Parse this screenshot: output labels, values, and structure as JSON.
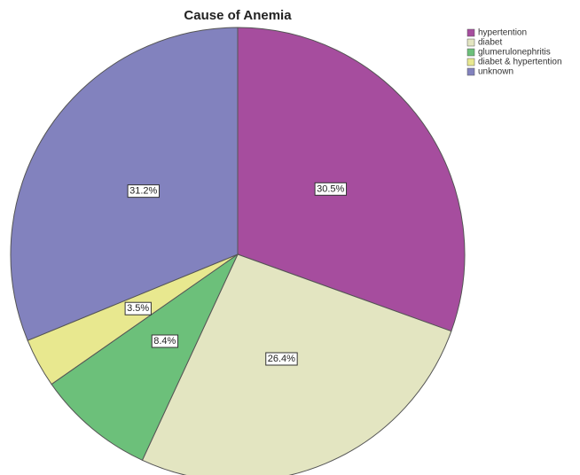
{
  "chart_data": {
    "type": "pie",
    "title": "Cause of Anemia",
    "categories": [
      "hypertention",
      "diabet",
      "glumerulonephritis",
      "diabet & hypertention",
      "unknown"
    ],
    "values": [
      30.5,
      26.4,
      8.4,
      3.5,
      31.2
    ],
    "value_labels": [
      "30.5%",
      "26.4%",
      "8.4%",
      "3.5%",
      "31.2%"
    ],
    "colors": [
      "#a64d9e",
      "#e3e5c1",
      "#6cc07a",
      "#e8e88f",
      "#8282be"
    ],
    "legend": "top-right"
  }
}
